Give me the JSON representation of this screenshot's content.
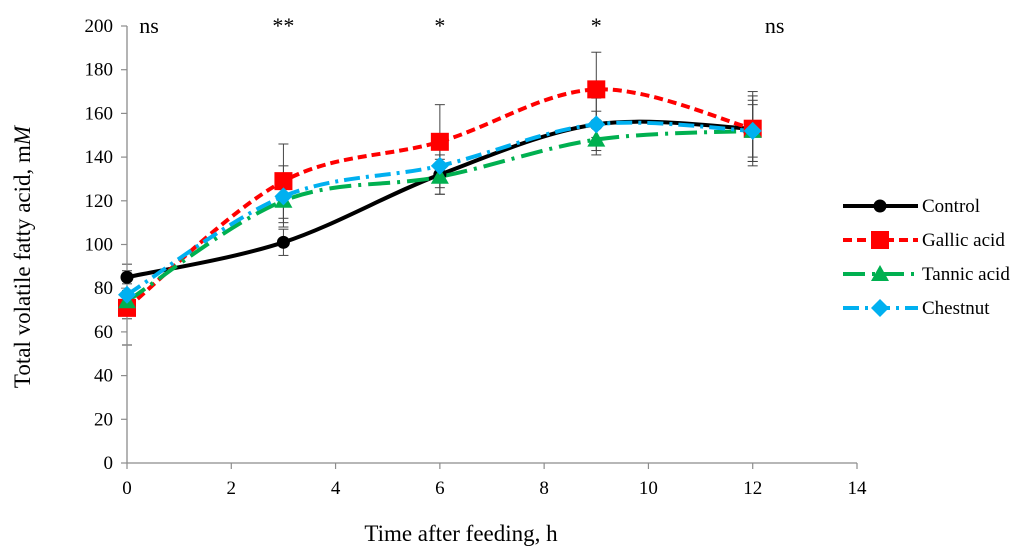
{
  "chart_data": {
    "type": "line",
    "title": "",
    "xlabel": "Time after feeding,  h",
    "ylabel": "Total volatile fatty acid, mM",
    "xlim": [
      0,
      14
    ],
    "ylim": [
      0,
      200
    ],
    "x_ticks": [
      0,
      2,
      4,
      6,
      8,
      10,
      12,
      14
    ],
    "y_ticks": [
      0,
      20,
      40,
      60,
      80,
      100,
      120,
      140,
      160,
      180,
      200
    ],
    "grid": false,
    "legend_position": "right",
    "significance": [
      {
        "x": 0,
        "label": "ns"
      },
      {
        "x": 3,
        "label": "**"
      },
      {
        "x": 6,
        "label": "*"
      },
      {
        "x": 9,
        "label": "*"
      },
      {
        "x": 12,
        "label": "ns"
      }
    ],
    "series": [
      {
        "name": "Control",
        "color": "#000000",
        "marker": "circle",
        "line": "solid",
        "x": [
          0,
          3,
          6,
          9,
          12
        ],
        "y": [
          85,
          101,
          132,
          155,
          153
        ],
        "err": [
          6,
          6,
          9,
          6,
          15
        ]
      },
      {
        "name": "Gallic acid",
        "color": "#ff0000",
        "marker": "square",
        "line": "dashed",
        "x": [
          0,
          3,
          6,
          9,
          12
        ],
        "y": [
          71,
          129,
          147,
          171,
          153
        ],
        "err": [
          17,
          17,
          17,
          17,
          17
        ]
      },
      {
        "name": "Tannic acid",
        "color": "#00b050",
        "marker": "triangle",
        "line": "longdash-dot",
        "x": [
          0,
          3,
          6,
          9,
          12
        ],
        "y": [
          74,
          120,
          131,
          148,
          152
        ],
        "err": [
          8,
          10,
          8,
          7,
          14
        ]
      },
      {
        "name": "Chestnut",
        "color": "#00b0f0",
        "marker": "diamond",
        "line": "dash-dot",
        "x": [
          0,
          3,
          6,
          9,
          12
        ],
        "y": [
          77,
          122,
          136,
          155,
          152
        ],
        "err": [
          9,
          14,
          10,
          12,
          12
        ]
      }
    ]
  }
}
